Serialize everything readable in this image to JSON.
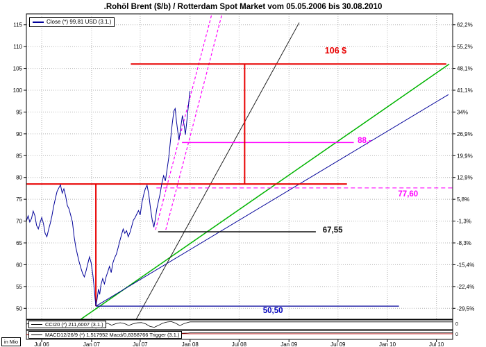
{
  "window": {
    "title": ".Rohöl Brent ($/b) / Rotterdam Spot Market vom 05.05.2006 bis 30.08.2010"
  },
  "legend": {
    "close": "Close (*) 99,81 USD (3.1.)"
  },
  "indicators": {
    "cci": "CCI20 (*) 211,6007 (3.1.)",
    "macd": "MACD12/26/9 (*) 1,517952 Macd/0,8358766 Trigger (3.1.)",
    "volume_unit": "in Mio",
    "cci_axis_value": "0",
    "macd_axis_value": "0"
  },
  "levels": {
    "l106": "106 $",
    "l88": "88,-",
    "l7760": "77,60",
    "l6755": "67,55",
    "l5050": "50,50"
  },
  "colors": {
    "grid": "#b4b4b4",
    "border": "#000000",
    "background": "#ffffff",
    "close_line": "#000099",
    "resistance": "#e80000",
    "magenta": "#ff00ff",
    "green_trend": "#00b400"
  },
  "chart_data": {
    "type": "line",
    "title": ".Rohöl Brent ($/b) / Rotterdam Spot Market vom 05.05.2006 bis 30.08.2010",
    "x_range_dates": [
      "05.05.2006",
      "30.08.2010"
    ],
    "price_range": [
      47.5,
      117.5
    ],
    "grid": true,
    "x_ticks": [
      {
        "label": "Jul 06",
        "t": 0.036
      },
      {
        "label": "Jan 07",
        "t": 0.153
      },
      {
        "label": "Jul 07",
        "t": 0.267
      },
      {
        "label": "Jan 08",
        "t": 0.384
      },
      {
        "label": "Jul 08",
        "t": 0.499
      },
      {
        "label": "Jan 09",
        "t": 0.616
      },
      {
        "label": "Jul 09",
        "t": 0.731
      },
      {
        "label": "Jan 10",
        "t": 0.847
      },
      {
        "label": "Jul 10",
        "t": 0.962
      }
    ],
    "price_ticks": [
      115,
      110,
      105,
      100,
      95,
      90,
      85,
      80,
      75,
      70,
      65,
      60,
      55,
      50
    ],
    "percent_ticks": [
      "62,2%",
      "55,2%",
      "48,1%",
      "41,1%",
      "34%",
      "26,9%",
      "19,9%",
      "12,9%",
      "5,8%",
      "-1,3%",
      "-8,3%",
      "-15,4%",
      "-22,4%",
      "-29,5%"
    ],
    "series": [
      {
        "name": "Close",
        "color": "#000099",
        "last_value": "99,81",
        "last_date": "3.1.",
        "points": [
          [
            0.0,
            70.0
          ],
          [
            0.004,
            71.2
          ],
          [
            0.008,
            69.8
          ],
          [
            0.012,
            70.6
          ],
          [
            0.016,
            72.3
          ],
          [
            0.02,
            71.2
          ],
          [
            0.024,
            69.0
          ],
          [
            0.028,
            68.2
          ],
          [
            0.032,
            69.6
          ],
          [
            0.036,
            70.8
          ],
          [
            0.04,
            69.4
          ],
          [
            0.044,
            67.2
          ],
          [
            0.048,
            66.4
          ],
          [
            0.052,
            68.0
          ],
          [
            0.056,
            69.5
          ],
          [
            0.06,
            71.2
          ],
          [
            0.064,
            73.4
          ],
          [
            0.068,
            75.2
          ],
          [
            0.072,
            76.8
          ],
          [
            0.076,
            77.6
          ],
          [
            0.08,
            78.3
          ],
          [
            0.084,
            76.4
          ],
          [
            0.088,
            77.4
          ],
          [
            0.092,
            75.8
          ],
          [
            0.096,
            73.6
          ],
          [
            0.1,
            72.8
          ],
          [
            0.104,
            71.3
          ],
          [
            0.108,
            69.8
          ],
          [
            0.112,
            66.4
          ],
          [
            0.116,
            64.0
          ],
          [
            0.12,
            62.2
          ],
          [
            0.124,
            60.6
          ],
          [
            0.128,
            59.2
          ],
          [
            0.132,
            58.0
          ],
          [
            0.136,
            57.2
          ],
          [
            0.14,
            58.6
          ],
          [
            0.144,
            60.2
          ],
          [
            0.148,
            61.8
          ],
          [
            0.152,
            60.4
          ],
          [
            0.156,
            57.6
          ],
          [
            0.159,
            54.8
          ],
          [
            0.161,
            52.4
          ],
          [
            0.163,
            50.5
          ],
          [
            0.166,
            52.2
          ],
          [
            0.169,
            54.4
          ],
          [
            0.172,
            53.2
          ],
          [
            0.175,
            55.4
          ],
          [
            0.179,
            56.8
          ],
          [
            0.183,
            55.6
          ],
          [
            0.187,
            57.2
          ],
          [
            0.191,
            58.4
          ],
          [
            0.195,
            59.6
          ],
          [
            0.199,
            58.2
          ],
          [
            0.203,
            60.4
          ],
          [
            0.207,
            61.6
          ],
          [
            0.211,
            62.4
          ],
          [
            0.215,
            63.8
          ],
          [
            0.219,
            65.4
          ],
          [
            0.223,
            66.8
          ],
          [
            0.227,
            68.2
          ],
          [
            0.231,
            67.2
          ],
          [
            0.235,
            67.8
          ],
          [
            0.239,
            66.4
          ],
          [
            0.243,
            67.4
          ],
          [
            0.247,
            68.8
          ],
          [
            0.251,
            70.2
          ],
          [
            0.255,
            70.8
          ],
          [
            0.259,
            71.6
          ],
          [
            0.263,
            72.4
          ],
          [
            0.267,
            71.4
          ],
          [
            0.271,
            74.2
          ],
          [
            0.275,
            76.0
          ],
          [
            0.279,
            77.4
          ],
          [
            0.283,
            78.2
          ],
          [
            0.287,
            76.2
          ],
          [
            0.291,
            73.0
          ],
          [
            0.295,
            70.4
          ],
          [
            0.299,
            68.6
          ],
          [
            0.302,
            70.2
          ],
          [
            0.306,
            72.8
          ],
          [
            0.31,
            74.6
          ],
          [
            0.314,
            76.4
          ],
          [
            0.318,
            78.8
          ],
          [
            0.322,
            80.4
          ],
          [
            0.326,
            79.2
          ],
          [
            0.33,
            81.8
          ],
          [
            0.334,
            84.6
          ],
          [
            0.338,
            88.4
          ],
          [
            0.342,
            92.2
          ],
          [
            0.346,
            95.2
          ],
          [
            0.349,
            95.8
          ],
          [
            0.352,
            93.0
          ],
          [
            0.355,
            90.6
          ],
          [
            0.358,
            88.6
          ],
          [
            0.362,
            91.4
          ],
          [
            0.366,
            94.2
          ],
          [
            0.37,
            92.0
          ],
          [
            0.373,
            89.8
          ],
          [
            0.376,
            92.6
          ],
          [
            0.379,
            95.4
          ],
          [
            0.381,
            97.2
          ],
          [
            0.3825,
            99.0
          ],
          [
            0.384,
            99.81
          ]
        ]
      }
    ],
    "trendlines": [
      {
        "name": "green-support",
        "color": "#00b400",
        "width": 1.5,
        "p": [
          [
            0.076,
            44
          ],
          [
            0.992,
            106
          ]
        ]
      },
      {
        "name": "blue-support",
        "color": "#000099",
        "width": 1,
        "p": [
          [
            0.163,
            50.5
          ],
          [
            0.99,
            99
          ]
        ]
      },
      {
        "name": "steep-resistance",
        "color": "#202020",
        "width": 1,
        "p": [
          [
            0.238,
            44
          ],
          [
            0.64,
            115.5
          ]
        ]
      },
      {
        "name": "magenta-channel-left",
        "color": "#ff00ff",
        "width": 1.2,
        "dash": "4,3",
        "p": [
          [
            0.303,
            68
          ],
          [
            0.435,
            117.5
          ]
        ]
      },
      {
        "name": "magenta-channel-right",
        "color": "#ff00ff",
        "width": 1.2,
        "dash": "4,3",
        "p": [
          [
            0.327,
            68
          ],
          [
            0.459,
            117.5
          ]
        ]
      }
    ],
    "hlines": [
      {
        "key": "l106",
        "price": 106,
        "t1": 0.245,
        "t2": 0.985,
        "color": "#e80000",
        "width": 2,
        "label": {
          "t": 0.7,
          "dy": -26
        }
      },
      {
        "key": "l785",
        "price": 78.5,
        "t1": 0.0,
        "t2": 0.752,
        "color": "#e80000",
        "width": 2
      },
      {
        "key": "l88",
        "price": 88,
        "t1": 0.365,
        "t2": 0.768,
        "color": "#ff00ff",
        "width": 1.5,
        "label": {
          "t": 0.777,
          "dy": -8
        }
      },
      {
        "key": "l7760",
        "price": 77.6,
        "t1": 0.305,
        "t2": 1.0,
        "color": "#ff00ff",
        "width": 1.2,
        "dash": "6,4",
        "label": {
          "t": 0.872,
          "dy": 3
        }
      },
      {
        "key": "l6755",
        "price": 67.55,
        "t1": 0.309,
        "t2": 0.679,
        "color": "#111111",
        "width": 1.5,
        "label": {
          "t": 0.695,
          "dy": -8
        }
      },
      {
        "key": "l5050",
        "price": 50.5,
        "t1": 0.163,
        "t2": 0.874,
        "color": "#000099",
        "width": 1.2,
        "label": {
          "t": 0.555,
          "dy": 1
        }
      }
    ],
    "vlines": [
      {
        "t": 0.163,
        "p1": 78.5,
        "p2": 50.5,
        "color": "#e80000",
        "width": 2
      },
      {
        "t": 0.512,
        "p1": 106,
        "p2": 78.5,
        "color": "#e80000",
        "width": 2
      }
    ],
    "cci": {
      "name": "CCI20",
      "last_value": "211,6007",
      "range": [
        -300,
        300
      ],
      "color": "#000000",
      "points": [
        [
          0.0,
          50
        ],
        [
          0.01,
          120
        ],
        [
          0.02,
          -80
        ],
        [
          0.03,
          60
        ],
        [
          0.04,
          -150
        ],
        [
          0.05,
          -60
        ],
        [
          0.06,
          130
        ],
        [
          0.07,
          180
        ],
        [
          0.08,
          90
        ],
        [
          0.09,
          -40
        ],
        [
          0.1,
          -160
        ],
        [
          0.11,
          -220
        ],
        [
          0.12,
          -120
        ],
        [
          0.13,
          -180
        ],
        [
          0.14,
          -60
        ],
        [
          0.15,
          40
        ],
        [
          0.158,
          -120
        ],
        [
          0.163,
          -250
        ],
        [
          0.17,
          -120
        ],
        [
          0.18,
          60
        ],
        [
          0.19,
          110
        ],
        [
          0.2,
          -30
        ],
        [
          0.21,
          80
        ],
        [
          0.22,
          150
        ],
        [
          0.23,
          90
        ],
        [
          0.24,
          -50
        ],
        [
          0.25,
          70
        ],
        [
          0.26,
          140
        ],
        [
          0.27,
          160
        ],
        [
          0.28,
          60
        ],
        [
          0.29,
          -120
        ],
        [
          0.3,
          -180
        ],
        [
          0.31,
          -40
        ],
        [
          0.32,
          120
        ],
        [
          0.33,
          200
        ],
        [
          0.34,
          230
        ],
        [
          0.35,
          120
        ],
        [
          0.36,
          -60
        ],
        [
          0.37,
          90
        ],
        [
          0.38,
          180
        ],
        [
          0.384,
          211.6
        ]
      ]
    },
    "macd": {
      "name": "MACD12/26/9",
      "macd_last": "1,517952",
      "trigger_last": "0,8358766",
      "range": [
        -3,
        3
      ],
      "macd_color": "#000000",
      "trigger_color": "#cc0000",
      "macd_points": [
        [
          0.0,
          0.2
        ],
        [
          0.02,
          0.5
        ],
        [
          0.04,
          0.1
        ],
        [
          0.06,
          0.6
        ],
        [
          0.08,
          1.0
        ],
        [
          0.1,
          0.2
        ],
        [
          0.12,
          -0.8
        ],
        [
          0.14,
          -1.2
        ],
        [
          0.16,
          -1.8
        ],
        [
          0.18,
          -1.0
        ],
        [
          0.2,
          -0.2
        ],
        [
          0.22,
          0.4
        ],
        [
          0.24,
          0.6
        ],
        [
          0.26,
          0.8
        ],
        [
          0.28,
          0.5
        ],
        [
          0.3,
          -0.4
        ],
        [
          0.32,
          0.6
        ],
        [
          0.34,
          1.6
        ],
        [
          0.36,
          1.2
        ],
        [
          0.38,
          1.4
        ],
        [
          0.384,
          1.52
        ]
      ],
      "trigger_points": [
        [
          0.0,
          0.1
        ],
        [
          0.04,
          0.3
        ],
        [
          0.08,
          0.6
        ],
        [
          0.12,
          -0.2
        ],
        [
          0.16,
          -1.2
        ],
        [
          0.2,
          -0.5
        ],
        [
          0.24,
          0.3
        ],
        [
          0.28,
          0.6
        ],
        [
          0.32,
          0.2
        ],
        [
          0.36,
          1.0
        ],
        [
          0.384,
          0.84
        ]
      ]
    }
  }
}
